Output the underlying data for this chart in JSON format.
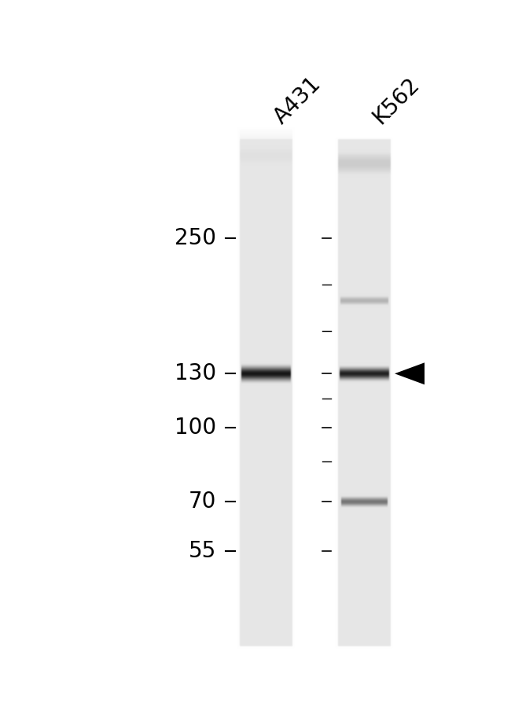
{
  "bg_color": "#ffffff",
  "lane_bg_color_rgb": [
    220,
    220,
    220
  ],
  "fig_width": 6.5,
  "fig_height": 9.21,
  "dpi": 100,
  "label1": "A431",
  "label2": "K562",
  "label_rotation": 45,
  "label_fontsize": 20,
  "mw_markers": [
    250,
    130,
    100,
    70,
    55
  ],
  "mw_fontsize": 20,
  "arrow_color": "#000000",
  "tick_color": "#000000",
  "tick_linewidth": 1.5
}
